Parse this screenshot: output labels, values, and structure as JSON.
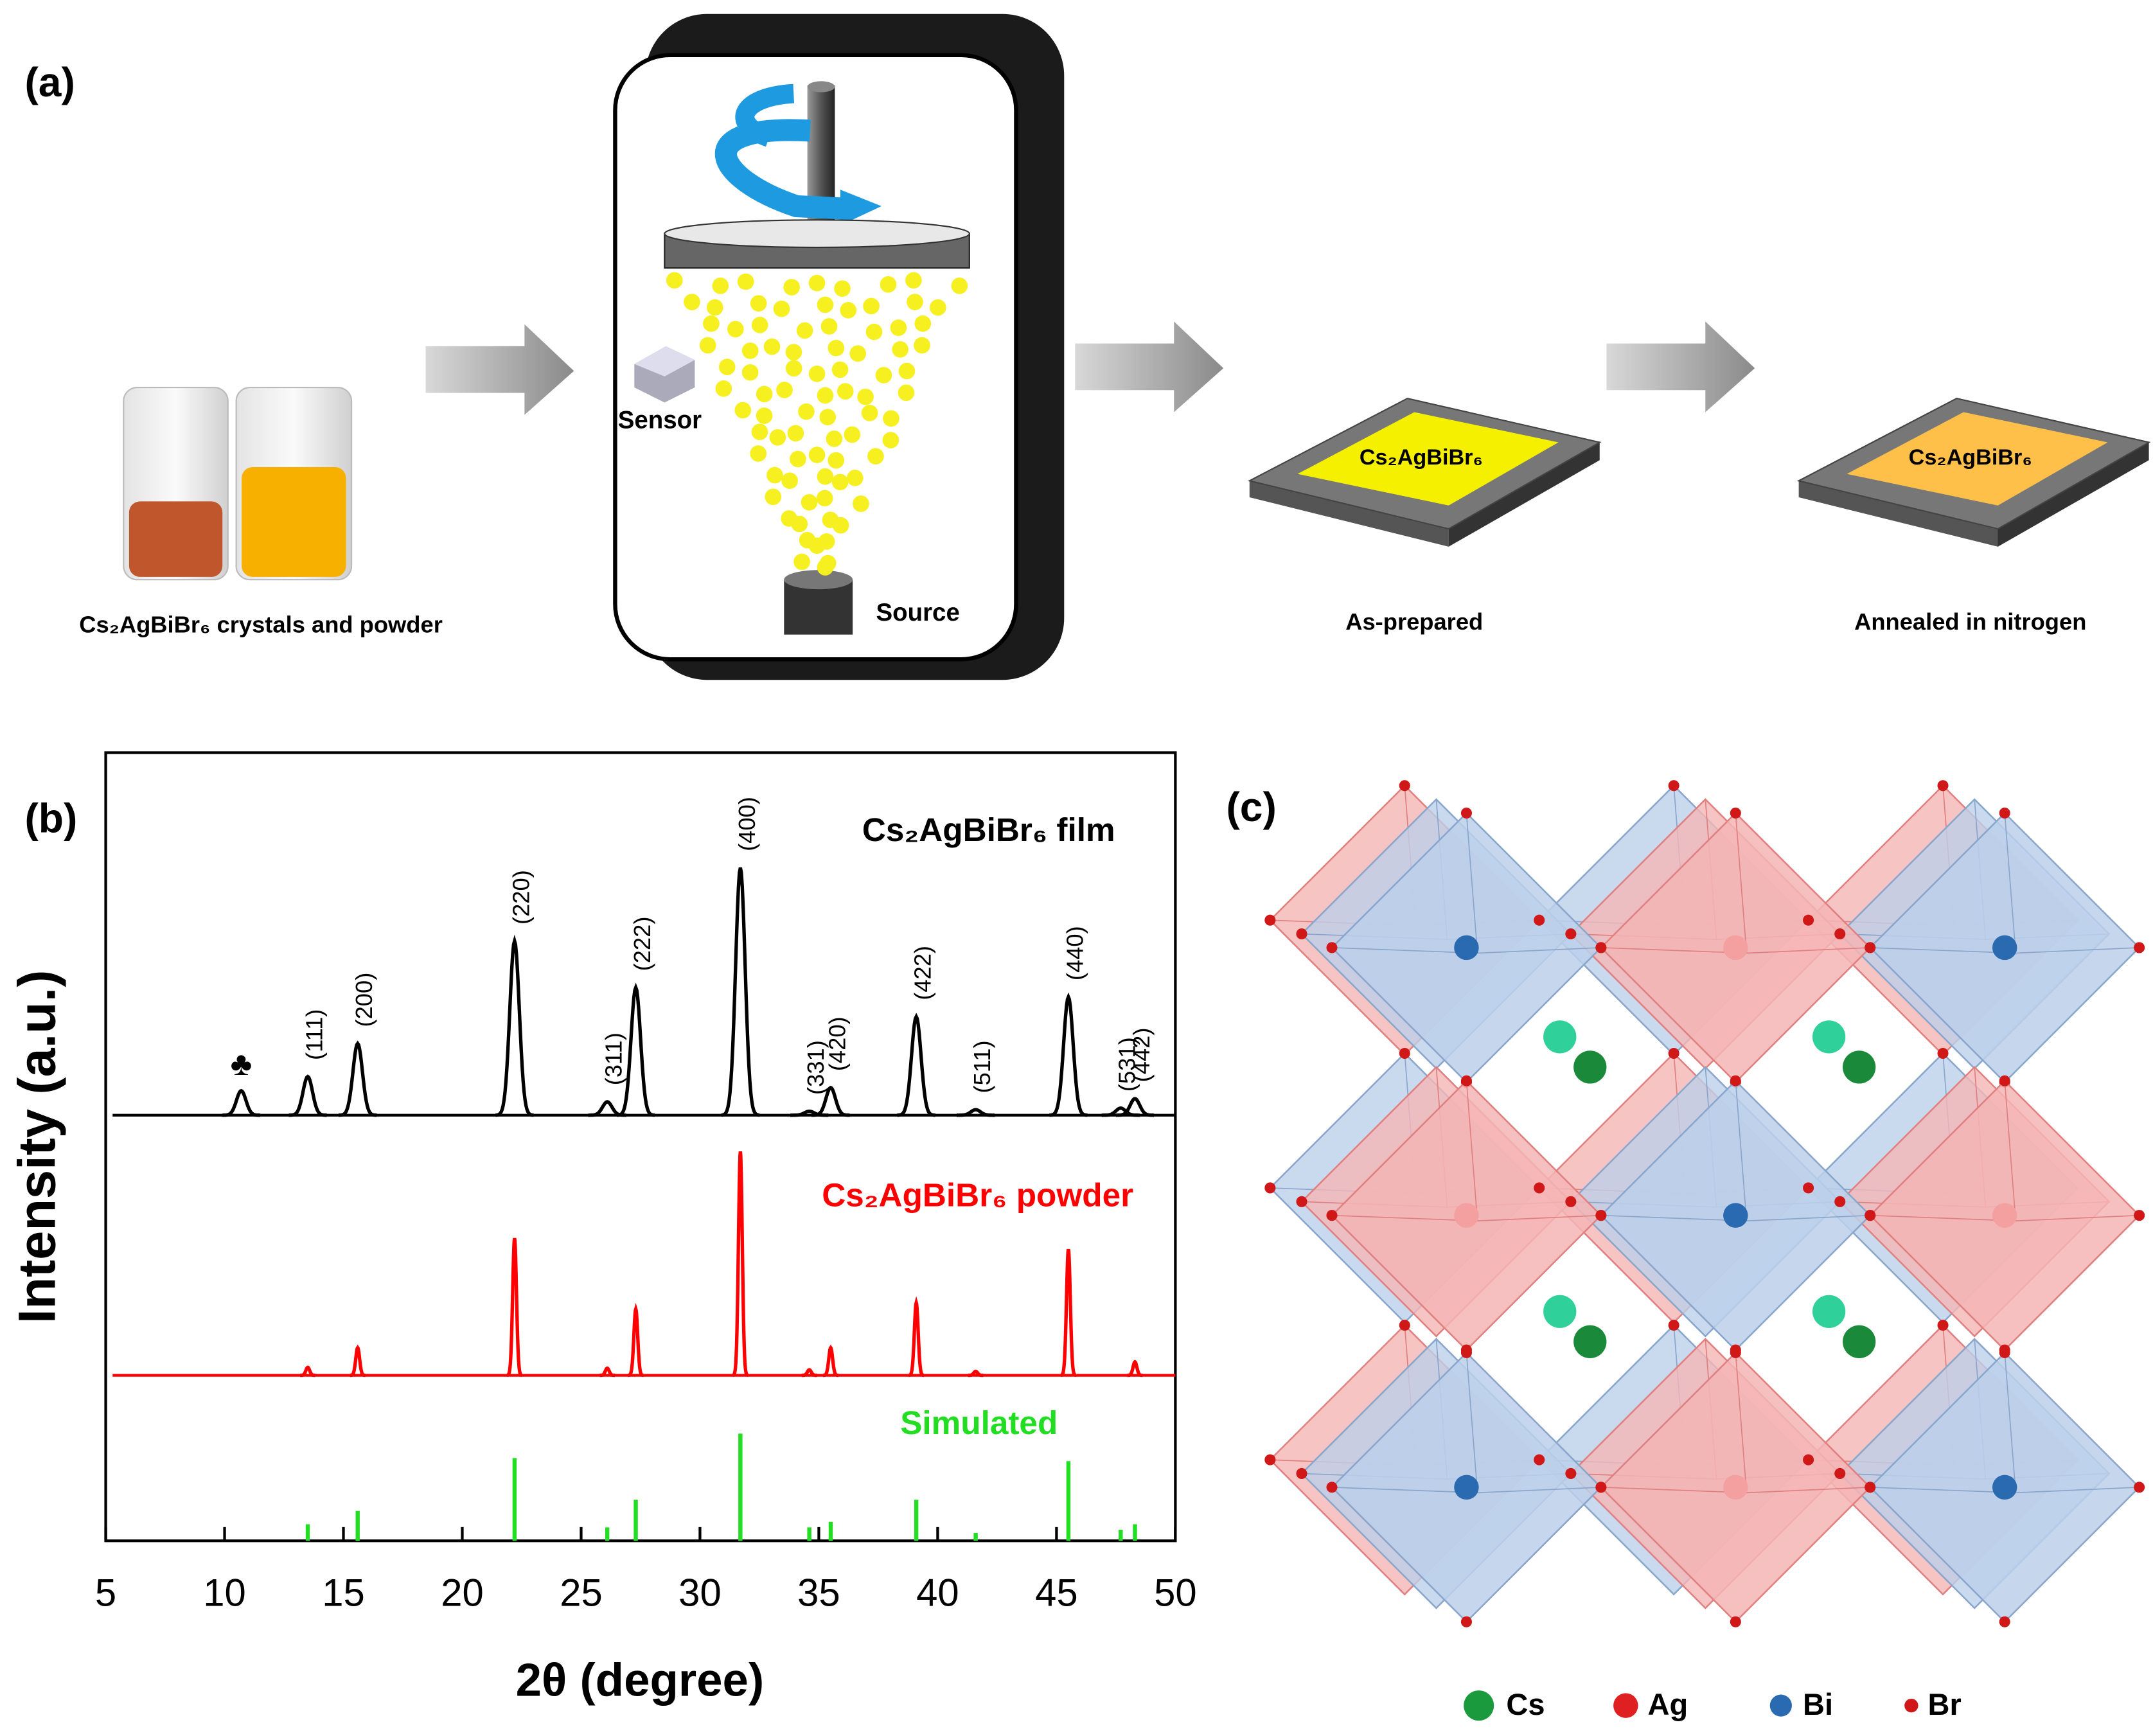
{
  "panel_a": {
    "label": "(a)",
    "vials_caption": "Cs₂AgBiBr₆ crystals and powder",
    "sensor": "Sensor",
    "source": "Source",
    "film_text": "Cs₂AgBiBr₆",
    "as_prepared": "As-prepared",
    "annealed_text": "Cs₂AgBiBr₆",
    "annealed": "Annealed in nitrogen"
  },
  "chart_data": {
    "type": "xrd",
    "label": "(b)",
    "xlabel": "2θ (degree)",
    "ylabel": "Intensity (a.u.)",
    "xlim": [
      5,
      50
    ],
    "xticks": [
      5,
      10,
      15,
      20,
      25,
      30,
      35,
      40,
      45,
      50
    ],
    "ylim": [
      0,
      100
    ],
    "series": [
      {
        "name": "Cs₂AgBiBr₆ film",
        "color": "#000000",
        "kind": "line",
        "offset": 54,
        "x": [
          10.7,
          13.5,
          15.6,
          22.2,
          26.1,
          27.3,
          31.7,
          34.6,
          35.5,
          39.1,
          41.6,
          45.5,
          47.7,
          48.3
        ],
        "values": [
          3.1,
          4.9,
          9.1,
          22.1,
          1.7,
          16.2,
          31.4,
          0.5,
          3.5,
          12.5,
          0.7,
          15.0,
          0.9,
          2.1
        ],
        "labels": [
          "♣",
          "(111)",
          "(200)",
          "(220)",
          "(311)",
          "(222)",
          "(400)",
          "(331)",
          "(420)",
          "(422)",
          "(511)",
          "(440)",
          "(531)",
          "(442)"
        ]
      },
      {
        "name": "Cs₂AgBiBr₆ powder",
        "color": "#ff0000",
        "kind": "line",
        "offset": 21,
        "x": [
          13.5,
          15.6,
          22.2,
          26.1,
          27.3,
          31.7,
          34.6,
          35.5,
          39.1,
          41.6,
          45.5,
          48.3
        ],
        "values": [
          1.0,
          3.5,
          17.4,
          0.9,
          8.4,
          28.4,
          0.7,
          3.5,
          9.2,
          0.5,
          16.0,
          1.7
        ]
      },
      {
        "name": "Simulated",
        "color": "#22dd22",
        "kind": "stick",
        "offset": 0,
        "x": [
          13.5,
          15.6,
          22.2,
          26.1,
          27.3,
          31.7,
          34.6,
          35.5,
          39.1,
          41.6,
          45.5,
          47.7,
          48.3
        ],
        "values": [
          2.1,
          3.8,
          10.5,
          1.7,
          5.2,
          13.6,
          1.7,
          2.4,
          5.2,
          1.0,
          10.1,
          1.4,
          2.1
        ]
      }
    ]
  },
  "panel_c": {
    "label": "(c)",
    "legend": [
      "Cs",
      "Ag",
      "Bi",
      "Br"
    ]
  }
}
